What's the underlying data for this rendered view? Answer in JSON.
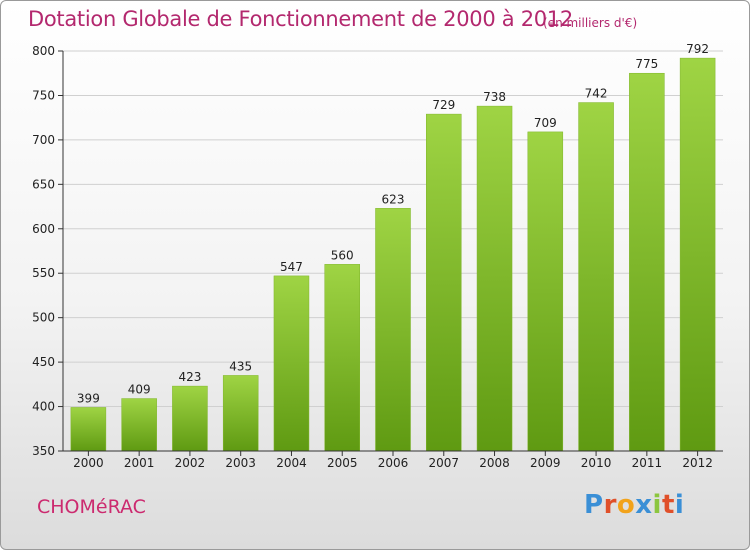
{
  "chart_data": {
    "type": "bar",
    "title": "Dotation Globale de Fonctionnement de 2000 à 2012",
    "subtitle": "(en milliers d'€)",
    "categories": [
      "2000",
      "2001",
      "2002",
      "2003",
      "2004",
      "2005",
      "2006",
      "2007",
      "2008",
      "2009",
      "2010",
      "2011",
      "2012"
    ],
    "values": [
      399,
      409,
      423,
      435,
      547,
      560,
      623,
      729,
      738,
      709,
      742,
      775,
      792
    ],
    "ylim": [
      350,
      800
    ],
    "yticks": [
      350,
      400,
      450,
      500,
      550,
      600,
      650,
      700,
      750,
      800
    ],
    "grid": true,
    "colors": {
      "bar_top": "#9fd444",
      "bar_bottom": "#5f9a12",
      "grid": "#d0d0d0",
      "title": "#b3286e"
    }
  },
  "footer": {
    "commune": "CHOMéRAC",
    "logo_letters": [
      "P",
      "r",
      "o",
      "x",
      "i",
      "t",
      "i"
    ],
    "logo_colors": [
      "#3a8fd6",
      "#e0502a",
      "#f2a31b",
      "#3a8fd6",
      "#8cc63f",
      "#e0502a",
      "#3a8fd6"
    ]
  }
}
